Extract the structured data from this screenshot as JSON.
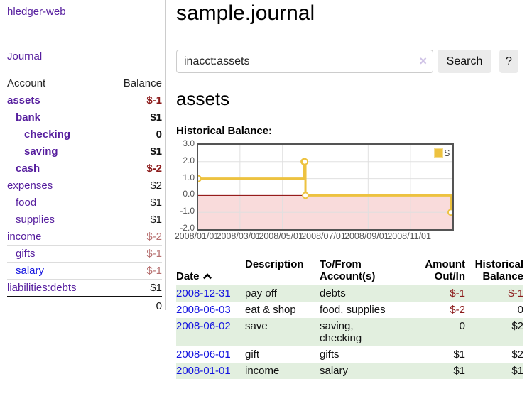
{
  "colors": {
    "link-purple": "#561e9e",
    "link-blue": "#1414e0",
    "neg-strong": "#8b1a1a",
    "neg-soft": "#b66e6e",
    "row-green": "#e2efdf",
    "series-gold": "#edc240"
  },
  "app": {
    "brand": "hledger-web",
    "nav_journal": "Journal"
  },
  "sidebar": {
    "col_account": "Account",
    "col_balance": "Balance",
    "accounts": [
      {
        "name": "assets",
        "balance": "$-1",
        "indent": 0,
        "bold": true,
        "neg": "strong"
      },
      {
        "name": "bank",
        "balance": "$1",
        "indent": 1,
        "bold": true
      },
      {
        "name": "checking",
        "balance": "0",
        "indent": 2,
        "bold": true
      },
      {
        "name": "saving",
        "balance": "$1",
        "indent": 2,
        "bold": true
      },
      {
        "name": "cash",
        "balance": "$-2",
        "indent": 1,
        "bold": true,
        "neg": "strong"
      },
      {
        "name": "expenses",
        "balance": "$2",
        "indent": 0
      },
      {
        "name": "food",
        "balance": "$1",
        "indent": 1
      },
      {
        "name": "supplies",
        "balance": "$1",
        "indent": 1
      },
      {
        "name": "income",
        "balance": "$-2",
        "indent": 0,
        "neg": "soft"
      },
      {
        "name": "gifts",
        "balance": "$-1",
        "indent": 1,
        "neg": "soft"
      },
      {
        "name": "salary",
        "balance": "$-1",
        "indent": 1,
        "neg": "soft",
        "link": "blue"
      },
      {
        "name": "liabilities:debts",
        "balance": "$1",
        "indent": 0
      }
    ],
    "total": "0"
  },
  "header": {
    "title": "sample.journal"
  },
  "search": {
    "value": "inacct:assets",
    "clear_icon": "×",
    "button": "Search",
    "help_button": "?"
  },
  "account_page": {
    "heading": "assets",
    "chart_label": "Historical Balance:"
  },
  "chart_data": {
    "type": "line",
    "title": "Historical Balance:",
    "series": [
      {
        "name": "$",
        "color": "#edc240",
        "steps": true,
        "points": [
          [
            "2008-01-01",
            1
          ],
          [
            "2008-06-01",
            2
          ],
          [
            "2008-06-02",
            2
          ],
          [
            "2008-06-03",
            0
          ],
          [
            "2008-12-31",
            -1
          ]
        ]
      }
    ],
    "xlim": [
      "2008-01-01",
      "2008-12-31"
    ],
    "ylim": [
      -2,
      3
    ],
    "x_ticks": [
      "2008/01/01",
      "2008/03/01",
      "2008/05/01",
      "2008/07/01",
      "2008/09/01",
      "2008/11/01"
    ],
    "y_ticks": [
      "3.0",
      "2.0",
      "1.0",
      "0.0",
      "-1.0",
      "-2.0"
    ],
    "grid": true,
    "legend_position": "top-right",
    "negative_region_color": "#f9dbdb",
    "zero_line_color": "#8b0000",
    "gridline_color": "#e0e0e0"
  },
  "register": {
    "columns": {
      "date": "Date",
      "description": "Description",
      "accounts": "To/From\nAccount(s)",
      "amount": "Amount\nOut/In",
      "balance": "Historical\nBalance"
    },
    "rows": [
      {
        "date": "2008-12-31",
        "description": "pay off",
        "accounts": "debts",
        "amount": "$-1",
        "amount_neg": true,
        "balance": "$-1",
        "balance_neg": true
      },
      {
        "date": "2008-06-03",
        "description": "eat & shop",
        "accounts": "food, supplies",
        "amount": "$-2",
        "amount_neg": true,
        "balance": "0"
      },
      {
        "date": "2008-06-02",
        "description": "save",
        "accounts": "saving,\nchecking",
        "amount": "0",
        "balance": "$2"
      },
      {
        "date": "2008-06-01",
        "description": "gift",
        "accounts": "gifts",
        "amount": "$1",
        "balance": "$2"
      },
      {
        "date": "2008-01-01",
        "description": "income",
        "accounts": "salary",
        "amount": "$1",
        "balance": "$1"
      }
    ]
  }
}
